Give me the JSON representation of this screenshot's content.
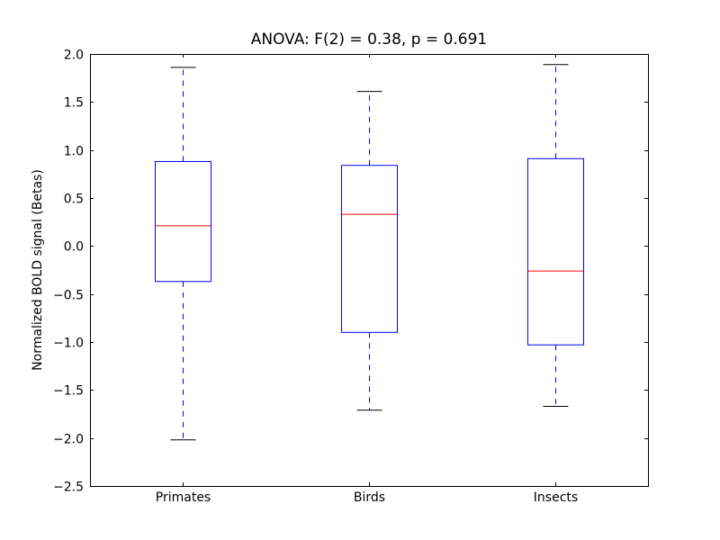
{
  "chart_data": {
    "type": "box",
    "title": "ANOVA: F(2) = 0.38, p = 0.691",
    "xlabel": "",
    "ylabel": "Normalized BOLD signal (Betas)",
    "ylim": [
      -2.5,
      2.0
    ],
    "yticks": [
      "2.0",
      "1.5",
      "1.0",
      "0.5",
      "0.0",
      "−0.5",
      "−1.0",
      "−1.5",
      "−2.0",
      "−2.5"
    ],
    "ytick_values": [
      2.0,
      1.5,
      1.0,
      0.5,
      0.0,
      -0.5,
      -1.0,
      -1.5,
      -2.0,
      -2.5
    ],
    "categories": [
      "Primates",
      "Birds",
      "Insects"
    ],
    "boxes": [
      {
        "whisker_low": -2.02,
        "q1": -0.37,
        "median": 0.21,
        "q3": 0.88,
        "whisker_high": 1.86
      },
      {
        "whisker_low": -1.71,
        "q1": -0.9,
        "median": 0.33,
        "q3": 0.84,
        "whisker_high": 1.61
      },
      {
        "whisker_low": -1.67,
        "q1": -1.03,
        "median": -0.26,
        "q3": 0.91,
        "whisker_high": 1.89
      }
    ],
    "grid": false,
    "colors": {
      "box": "#0000ff",
      "median": "#ff0000",
      "cap": "#000000"
    }
  }
}
